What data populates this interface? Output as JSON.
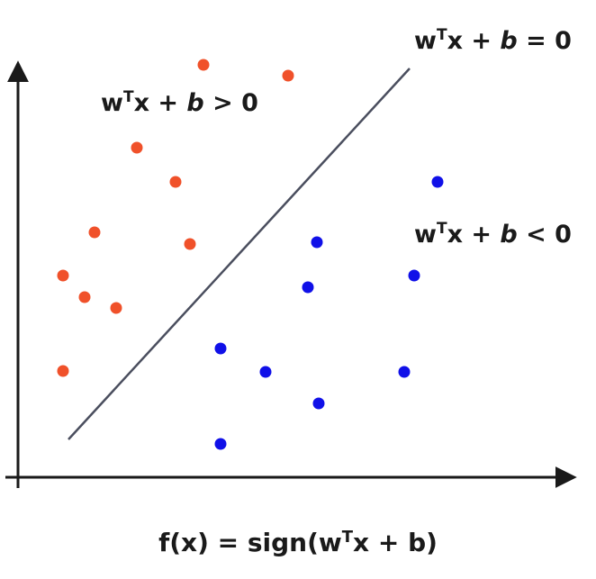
{
  "chart_data": {
    "type": "scatter",
    "series": [
      {
        "color": "#f0512a",
        "points": [
          [
            226,
            72
          ],
          [
            320,
            84
          ],
          [
            152,
            164
          ],
          [
            195,
            202
          ],
          [
            105,
            258
          ],
          [
            211,
            271
          ],
          [
            70,
            306
          ],
          [
            94,
            330
          ],
          [
            129,
            342
          ],
          [
            70,
            412
          ]
        ]
      },
      {
        "color": "#1010e8",
        "points": [
          [
            486,
            202
          ],
          [
            352,
            269
          ],
          [
            460,
            306
          ],
          [
            342,
            319
          ],
          [
            245,
            387
          ],
          [
            295,
            413
          ],
          [
            449,
            413
          ],
          [
            354,
            448
          ],
          [
            245,
            493
          ]
        ]
      }
    ],
    "boundary": {
      "from": [
        76,
        488
      ],
      "to": [
        455,
        76
      ],
      "color": "#4a4e5e"
    }
  },
  "labels": {
    "boundary": {
      "w": "w",
      "t": "T",
      "x": "x + ",
      "b": "b",
      "rest": " = 0"
    },
    "positive": {
      "w": "w",
      "t": "T",
      "x": "x + ",
      "b": "b",
      "rest": " > 0"
    },
    "negative": {
      "w": "w",
      "t": "T",
      "x": "x + ",
      "b": "b",
      "rest": " < 0"
    }
  },
  "caption": {
    "f": "f",
    "arg": "(x) = sign(w",
    "t": "T",
    "x": "x + ",
    "b": "b",
    "close": ")"
  }
}
